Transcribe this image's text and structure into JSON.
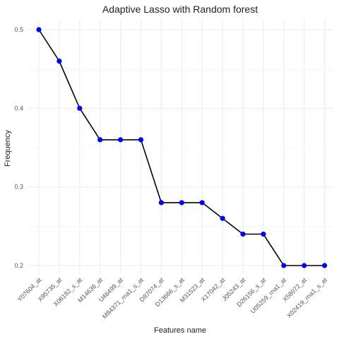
{
  "chart_data": {
    "type": "line",
    "title": "Adaptive Lasso with Random forest",
    "xlabel": "Features name",
    "ylabel": "Frequency",
    "categories": [
      "Y07604_at",
      "X95735_at",
      "X06182_s_at",
      "M14636_at",
      "U46499_at",
      "M84371_rna1_s_at",
      "D87074_at",
      "D13666_s_at",
      "M31523_at",
      "X17042_at",
      "J05243_at",
      "D26156_s_at",
      "U05259_rna1_at",
      "X58072_at",
      "X02419_rna1_s_at"
    ],
    "values": [
      0.5,
      0.46,
      0.4,
      0.36,
      0.36,
      0.36,
      0.28,
      0.28,
      0.28,
      0.26,
      0.24,
      0.24,
      0.2,
      0.2,
      0.2
    ],
    "yticks": [
      "0.2",
      "0.3",
      "0.4",
      "0.5"
    ],
    "ylim": [
      0.2,
      0.5
    ],
    "grid": true,
    "legend": "none",
    "line_color": "#000000",
    "point_color": "#0000ff"
  }
}
